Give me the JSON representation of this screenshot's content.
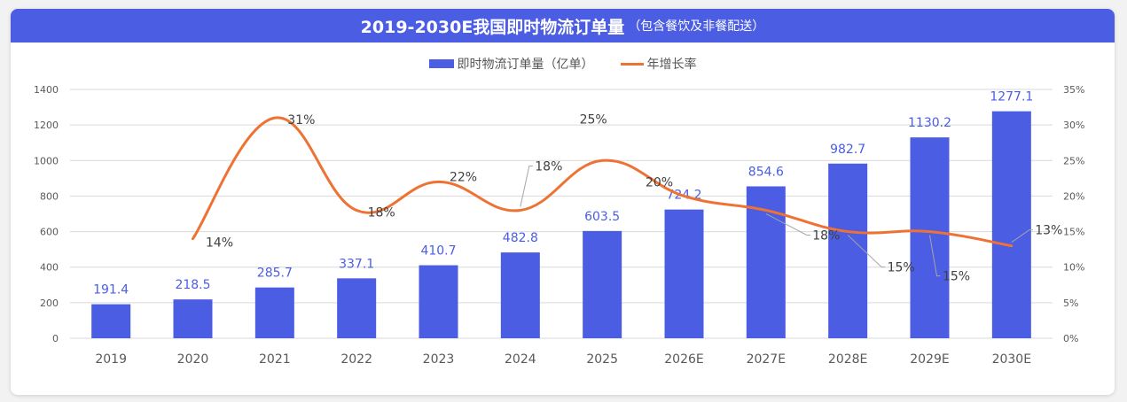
{
  "chart_data": {
    "type": "bar",
    "title": "2019-2030E我国即时物流订单量",
    "subtitle": "（包含餐饮及非餐配送）",
    "categories": [
      "2019",
      "2020",
      "2021",
      "2022",
      "2023",
      "2024",
      "2025",
      "2026E",
      "2027E",
      "2028E",
      "2029E",
      "2030E"
    ],
    "series": [
      {
        "name": "即时物流订单量（亿单）",
        "type": "bar",
        "axis": "left",
        "color": "#4a5de3",
        "values": [
          191.4,
          218.5,
          285.7,
          337.1,
          410.7,
          482.8,
          603.5,
          724.2,
          854.6,
          982.7,
          1130.2,
          1277.1
        ],
        "labels": [
          "191.4",
          "218.5",
          "285.7",
          "337.1",
          "410.7",
          "482.8",
          "603.5",
          "724.2",
          "854.6",
          "982.7",
          "1130.2",
          "1277.1"
        ]
      },
      {
        "name": "年增长率",
        "type": "line",
        "smooth": true,
        "axis": "right",
        "color": "#ee7233",
        "values": [
          null,
          14,
          31,
          18,
          22,
          18,
          25,
          20,
          18,
          15,
          15,
          13
        ],
        "labels": [
          "",
          "14%",
          "31%",
          "18%",
          "22%",
          "18%",
          "25%",
          "20%",
          "18%",
          "15%",
          "15%",
          "13%"
        ]
      }
    ],
    "y_left": {
      "lim": [
        0,
        1400
      ],
      "ticks": [
        "0",
        "200",
        "400",
        "600",
        "800",
        "1000",
        "1200",
        "1400"
      ]
    },
    "y_right": {
      "lim": [
        0,
        35
      ],
      "ticks": [
        "0%",
        "5%",
        "10%",
        "15%",
        "20%",
        "25%",
        "30%",
        "35%"
      ]
    },
    "grid": true,
    "legend": "top-center"
  }
}
